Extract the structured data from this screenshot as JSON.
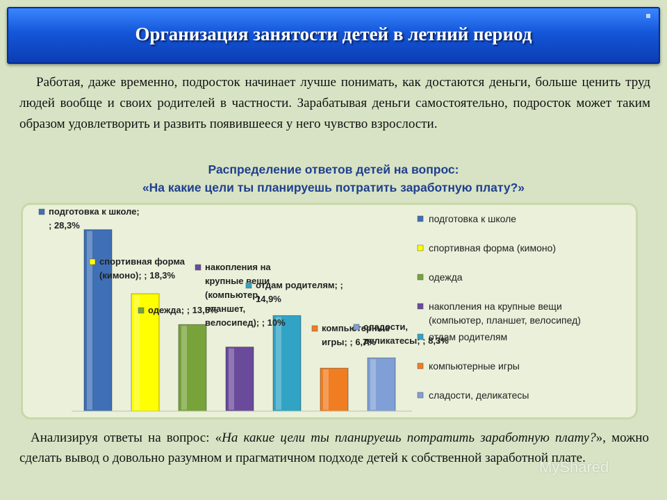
{
  "header": {
    "title": "Организация занятости детей в летний период"
  },
  "intro": "Работая, даже временно, подросток начинает лучше понимать, как достаются деньги, больше ценить труд людей вообще и своих родителей в частности. Зарабатывая деньги самостоятельно, подросток может таким образом удовлетворить и развить появившееся у него чувство взрослости.",
  "question": {
    "line1": "Распределение ответов детей  на вопрос:",
    "line2": "«На какие цели ты планируешь потратить заработную плату?»"
  },
  "chart_data": {
    "type": "bar",
    "categories": [
      "подготовка к школе",
      "спортивная форма (кимоно)",
      "одежда",
      "накопления на крупные вещи (компьютер, планшет, велосипед)",
      "отдам родителям",
      "компьютерные игры",
      "сладости, деликатесы"
    ],
    "values": [
      28.3,
      18.3,
      13.5,
      10,
      14.9,
      6.7,
      8.3
    ],
    "colors": [
      "#3f6fb4",
      "#ffff00",
      "#77a33a",
      "#6a4a9a",
      "#31a3c4",
      "#f07d22",
      "#7f9fd6"
    ],
    "data_labels": [
      [
        "подготовка к школе;",
        "; 28,3%"
      ],
      [
        "спортивная форма",
        "(кимоно); ; 18,3%"
      ],
      [
        "одежда; ; 13,5%"
      ],
      [
        "накопления на",
        "крупные вещи",
        "(компьютер,",
        "планшет,",
        "велосипед); ; 10%"
      ],
      [
        "отдам родителям; ;",
        "14,9%"
      ],
      [
        "компьютерные",
        "игры; ; 6,7%"
      ],
      [
        "сладости,",
        "деликатесы; ; 8,3%"
      ]
    ],
    "legend": [
      "подготовка к школе",
      "спортивная форма (кимоно)",
      "одежда",
      "накопления на крупные вещи (компьютер, планшет, велосипед)",
      "отдам родителям",
      "компьютерные игры",
      "сладости, деликатесы"
    ],
    "ylim": [
      0,
      30
    ],
    "grid": false,
    "legend_position": "right"
  },
  "conclusion": {
    "part1": "Анализируя ответы на вопрос: «",
    "italic": "На какие цели ты планируешь потратить заработную плату?",
    "part2": "», можно сделать вывод о довольно разумном и прагматичном подходе детей к собственной заработной плате."
  },
  "watermark": "MyShared"
}
